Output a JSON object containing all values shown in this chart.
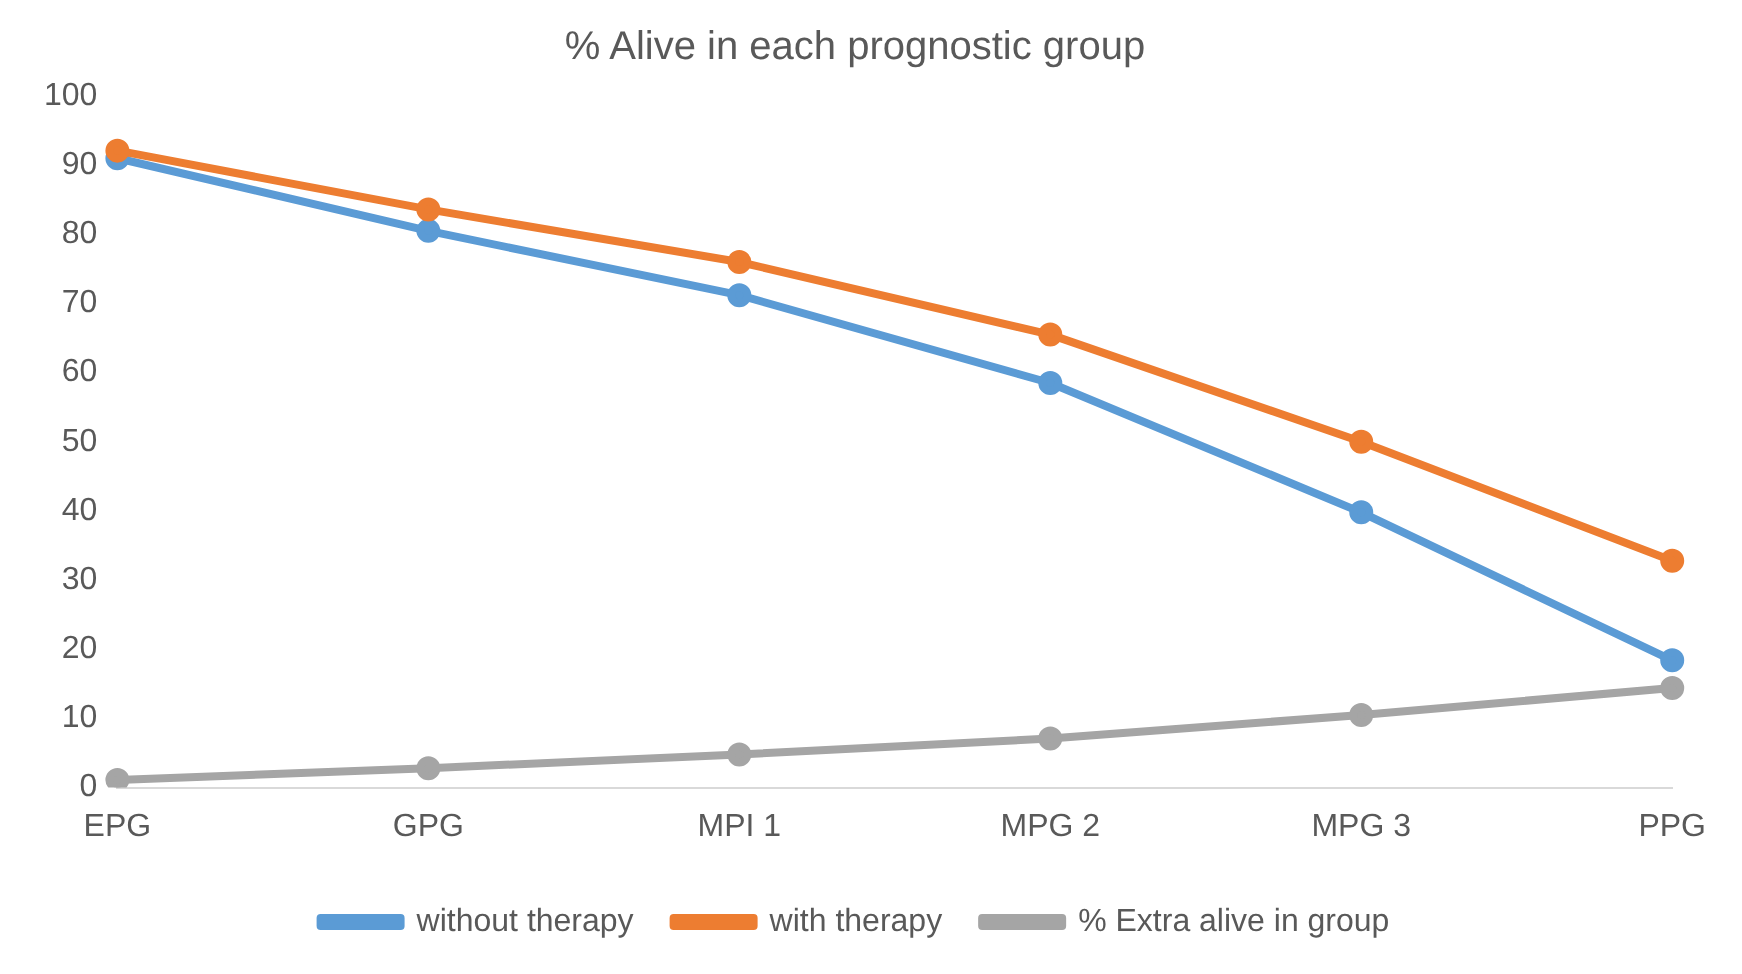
{
  "chart_data": {
    "type": "line",
    "title": "% Alive in each prognostic group",
    "categories": [
      "EPG",
      "GPG",
      "MPI 1",
      "MPG 2",
      "MPG 3",
      "PPG"
    ],
    "series": [
      {
        "name": "without therapy",
        "color": "#5b9bd5",
        "values": [
          91.0,
          80.5,
          71.2,
          58.5,
          39.8,
          18.4
        ]
      },
      {
        "name": "with therapy",
        "color": "#ed7d31",
        "values": [
          92.1,
          83.6,
          76.0,
          65.5,
          50.0,
          32.8
        ]
      },
      {
        "name": "% Extra alive in group",
        "color": "#a5a5a5",
        "values": [
          1.1,
          2.8,
          4.8,
          7.1,
          10.5,
          14.4
        ]
      }
    ],
    "ylim": [
      0,
      100
    ],
    "yticks": [
      0,
      10,
      20,
      30,
      40,
      50,
      60,
      70,
      80,
      90,
      100
    ],
    "grid": false,
    "legend": "bottom",
    "marker": "circle",
    "line_style": "solid"
  }
}
